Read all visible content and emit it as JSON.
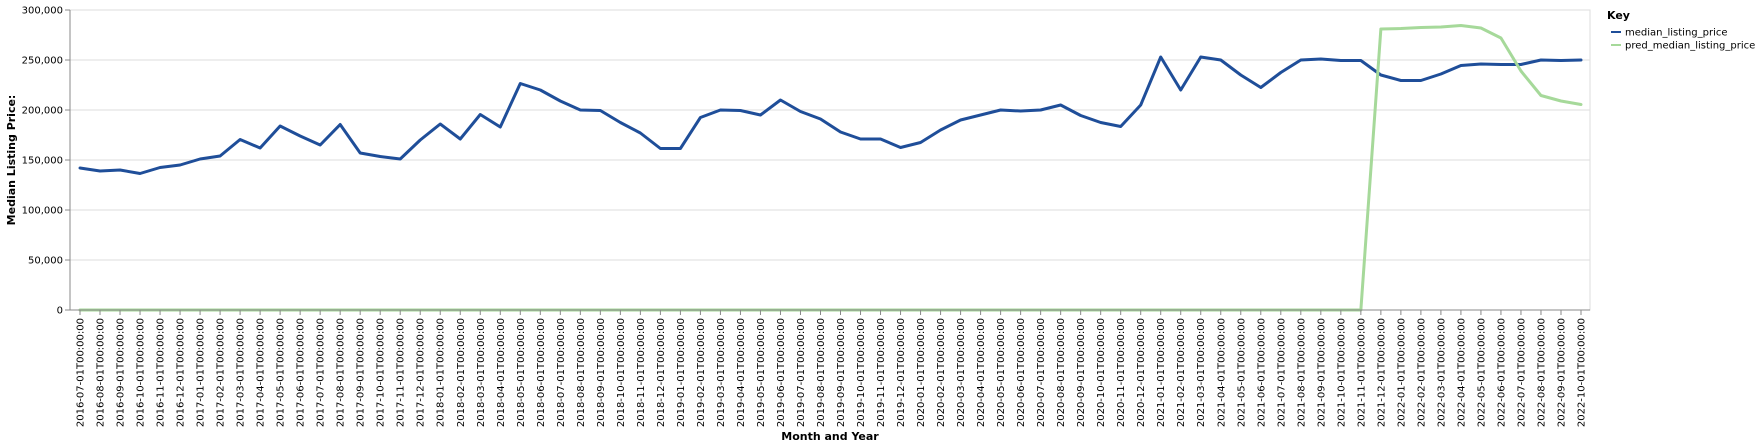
{
  "chart_data": {
    "type": "line",
    "xlabel": "Month and Year",
    "ylabel": "Median Listing Price:",
    "ylim": [
      0,
      300000
    ],
    "yticks": [
      "0",
      "50,000",
      "100,000",
      "150,000",
      "200,000",
      "250,000",
      "300,000"
    ],
    "grid": true,
    "legend": {
      "title": "Key",
      "placement": "top-right"
    },
    "x": [
      "2016-07-01T00:00:00",
      "2016-08-01T00:00:00",
      "2016-09-01T00:00:00",
      "2016-10-01T00:00:00",
      "2016-11-01T00:00:00",
      "2016-12-01T00:00:00",
      "2017-01-01T00:00:00",
      "2017-02-01T00:00:00",
      "2017-03-01T00:00:00",
      "2017-04-01T00:00:00",
      "2017-05-01T00:00:00",
      "2017-06-01T00:00:00",
      "2017-07-01T00:00:00",
      "2017-08-01T00:00:00",
      "2017-09-01T00:00:00",
      "2017-10-01T00:00:00",
      "2017-11-01T00:00:00",
      "2017-12-01T00:00:00",
      "2018-01-01T00:00:00",
      "2018-02-01T00:00:00",
      "2018-03-01T00:00:00",
      "2018-04-01T00:00:00",
      "2018-05-01T00:00:00",
      "2018-06-01T00:00:00",
      "2018-07-01T00:00:00",
      "2018-08-01T00:00:00",
      "2018-09-01T00:00:00",
      "2018-10-01T00:00:00",
      "2018-11-01T00:00:00",
      "2018-12-01T00:00:00",
      "2019-01-01T00:00:00",
      "2019-02-01T00:00:00",
      "2019-03-01T00:00:00",
      "2019-04-01T00:00:00",
      "2019-05-01T00:00:00",
      "2019-06-01T00:00:00",
      "2019-07-01T00:00:00",
      "2019-08-01T00:00:00",
      "2019-09-01T00:00:00",
      "2019-10-01T00:00:00",
      "2019-11-01T00:00:00",
      "2019-12-01T00:00:00",
      "2020-01-01T00:00:00",
      "2020-02-01T00:00:00",
      "2020-03-01T00:00:00",
      "2020-04-01T00:00:00",
      "2020-05-01T00:00:00",
      "2020-06-01T00:00:00",
      "2020-07-01T00:00:00",
      "2020-08-01T00:00:00",
      "2020-09-01T00:00:00",
      "2020-10-01T00:00:00",
      "2020-11-01T00:00:00",
      "2020-12-01T00:00:00",
      "2021-01-01T00:00:00",
      "2021-02-01T00:00:00",
      "2021-03-01T00:00:00",
      "2021-04-01T00:00:00",
      "2021-05-01T00:00:00",
      "2021-06-01T00:00:00",
      "2021-07-01T00:00:00",
      "2021-08-01T00:00:00",
      "2021-09-01T00:00:00",
      "2021-10-01T00:00:00",
      "2021-11-01T00:00:00",
      "2021-12-01T00:00:00",
      "2022-01-01T00:00:00",
      "2022-02-01T00:00:00",
      "2022-03-01T00:00:00",
      "2022-04-01T00:00:00",
      "2022-05-01T00:00:00",
      "2022-06-01T00:00:00",
      "2022-07-01T00:00:00",
      "2022-08-01T00:00:00",
      "2022-09-01T00:00:00",
      "2022-10-01T00:00:00"
    ],
    "series": [
      {
        "name": "median_listing_price",
        "color": "#1f4e99",
        "values": [
          142000,
          139000,
          140000,
          136500,
          142500,
          145000,
          151000,
          154000,
          170500,
          162000,
          184000,
          174000,
          165000,
          185500,
          157000,
          153500,
          151000,
          170000,
          186000,
          171000,
          195500,
          183000,
          226500,
          220000,
          209000,
          200000,
          199500,
          187500,
          177000,
          161500,
          161500,
          192500,
          200000,
          199500,
          195000,
          210000,
          198500,
          191000,
          178000,
          171000,
          171000,
          162500,
          167500,
          180000,
          190000,
          195000,
          200000,
          199000,
          200000,
          205000,
          194500,
          187500,
          183500,
          205000,
          253000,
          220000,
          253000,
          250000,
          235000,
          222500,
          237500,
          250000,
          251000,
          249500,
          249500,
          235000,
          229500,
          229500,
          236000,
          244500,
          246000,
          245500,
          245500,
          250000,
          249500,
          250000
        ]
      },
      {
        "name": "pred_median_listing_price",
        "color": "#a6d99a",
        "values": [
          0,
          0,
          0,
          0,
          0,
          0,
          0,
          0,
          0,
          0,
          0,
          0,
          0,
          0,
          0,
          0,
          0,
          0,
          0,
          0,
          0,
          0,
          0,
          0,
          0,
          0,
          0,
          0,
          0,
          0,
          0,
          0,
          0,
          0,
          0,
          0,
          0,
          0,
          0,
          0,
          0,
          0,
          0,
          0,
          0,
          0,
          0,
          0,
          0,
          0,
          0,
          0,
          0,
          0,
          0,
          0,
          0,
          0,
          0,
          0,
          0,
          0,
          0,
          0,
          0,
          281000,
          281500,
          282500,
          283000,
          284500,
          282000,
          272000,
          239000,
          214500,
          209000,
          205500
        ]
      }
    ]
  }
}
